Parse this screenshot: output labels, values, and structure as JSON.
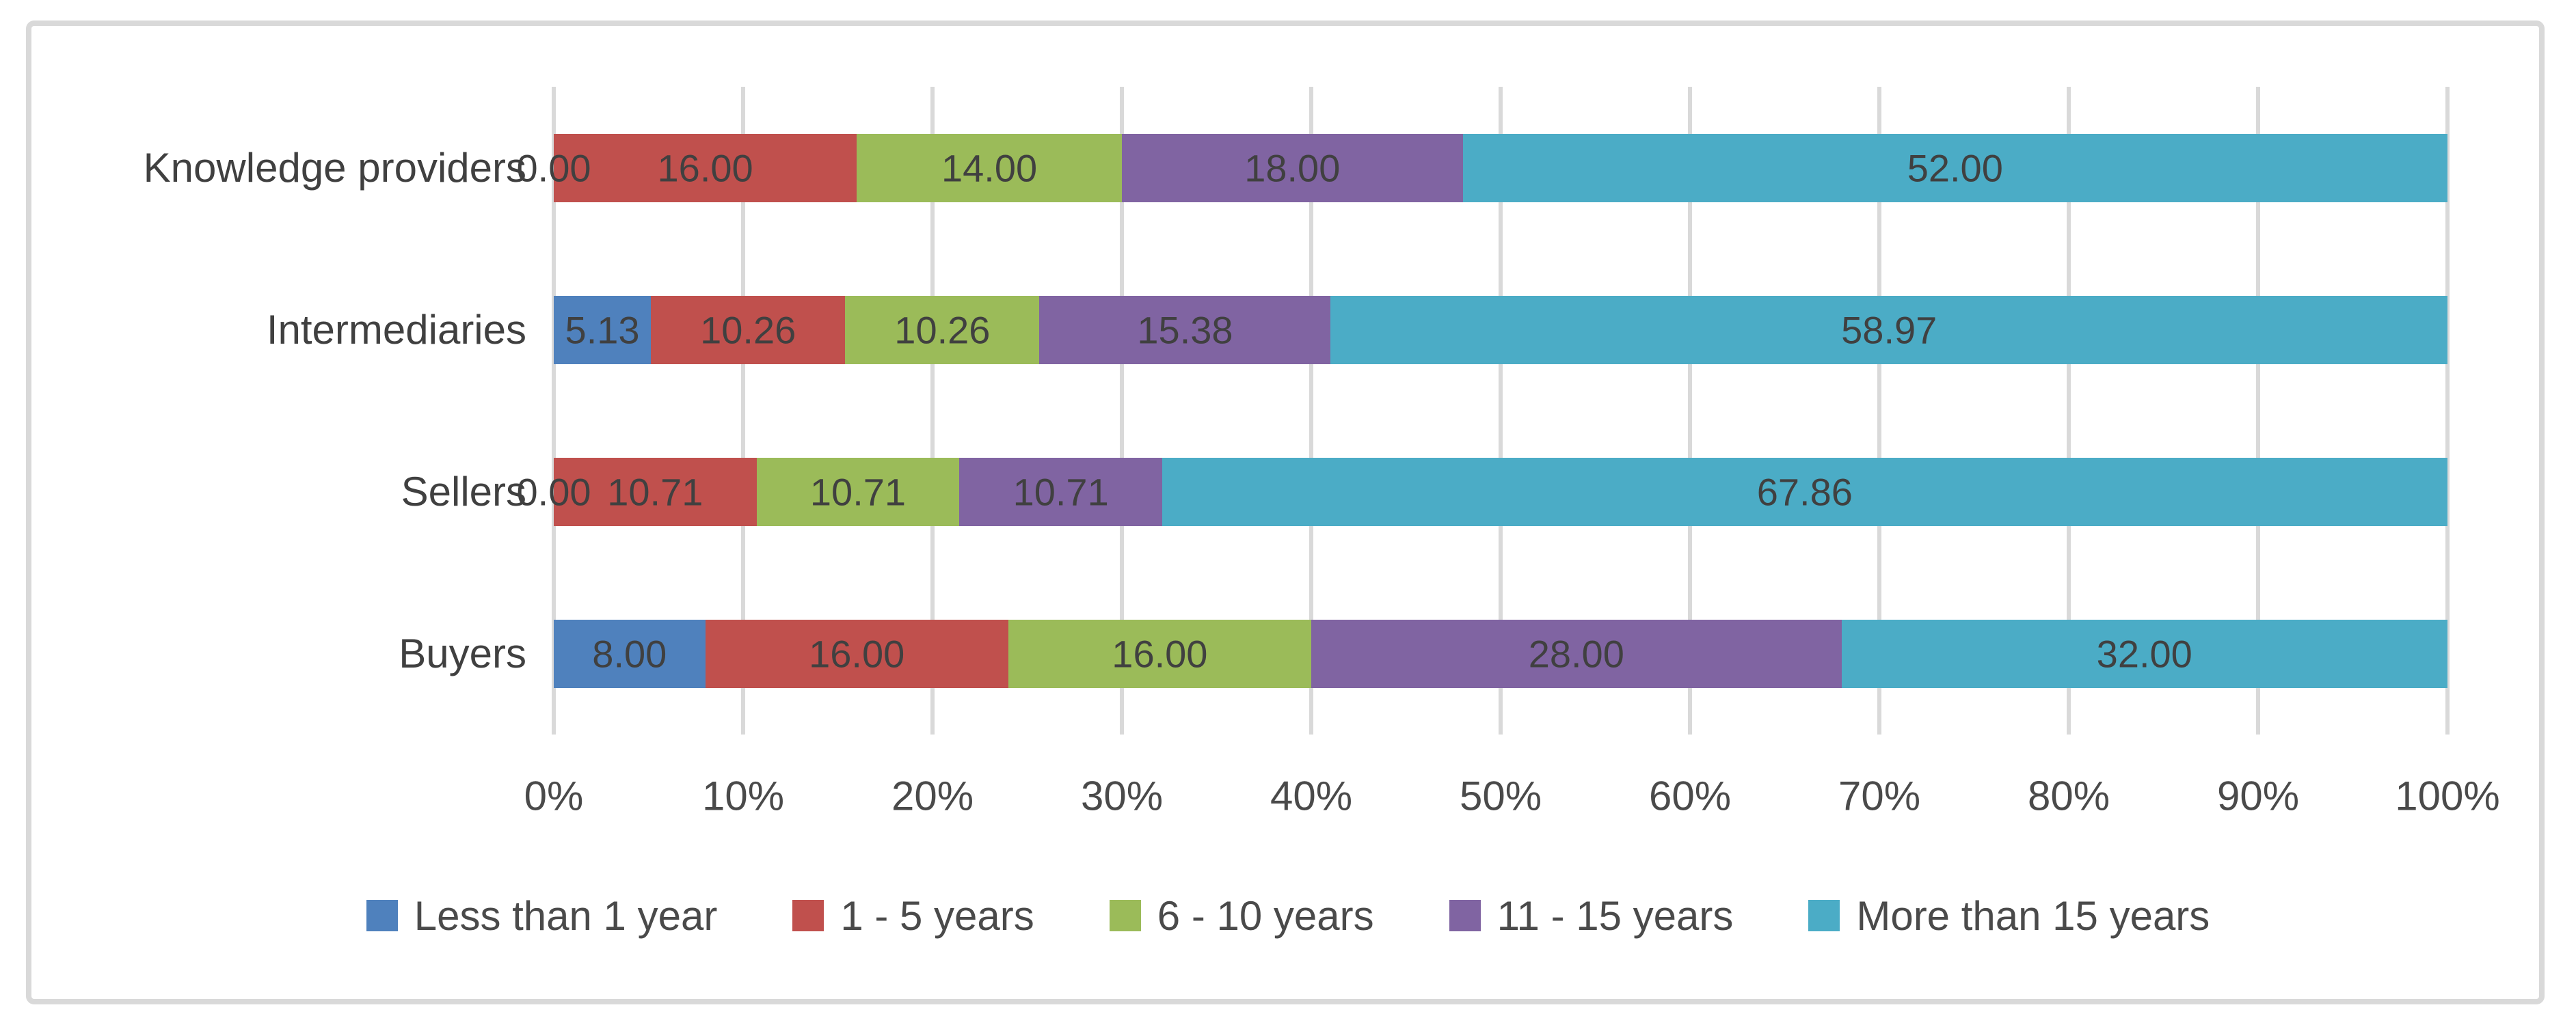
{
  "chart_data": {
    "type": "bar",
    "subtype": "horizontal-stacked-100pct",
    "categories": [
      "Knowledge providers",
      "Intermediaries",
      "Sellers",
      "Buyers"
    ],
    "series": [
      {
        "name": "Less than 1 year",
        "color": "#4F81BD",
        "values": [
          0.0,
          5.13,
          0.0,
          8.0
        ],
        "labels": [
          "0.00",
          "5.13",
          "0.00",
          "8.00"
        ]
      },
      {
        "name": "1 - 5 years",
        "color": "#C0504D",
        "values": [
          16.0,
          10.26,
          10.71,
          16.0
        ],
        "labels": [
          "16.00",
          "10.26",
          "10.71",
          "16.00"
        ]
      },
      {
        "name": "6 - 10 years",
        "color": "#9BBB59",
        "values": [
          14.0,
          10.26,
          10.71,
          16.0
        ],
        "labels": [
          "14.00",
          "10.26",
          "10.71",
          "16.00"
        ]
      },
      {
        "name": "11 - 15 years",
        "color": "#8064A2",
        "values": [
          18.0,
          15.38,
          10.71,
          28.0
        ],
        "labels": [
          "18.00",
          "15.38",
          "10.71",
          "28.00"
        ]
      },
      {
        "name": "More than 15 years",
        "color": "#4BACC6",
        "values": [
          52.0,
          58.97,
          67.86,
          32.0
        ],
        "labels": [
          "52.00",
          "58.97",
          "67.86",
          "32.00"
        ]
      }
    ],
    "x_axis": {
      "ticks": [
        "0%",
        "10%",
        "20%",
        "30%",
        "40%",
        "50%",
        "60%",
        "70%",
        "80%",
        "90%",
        "100%"
      ],
      "min": 0,
      "max": 100
    },
    "grid": true,
    "gridline_color": "#D9D9D9",
    "frame_border_color": "#D9D9D9",
    "label_color": "#404040",
    "legend_position": "bottom"
  }
}
